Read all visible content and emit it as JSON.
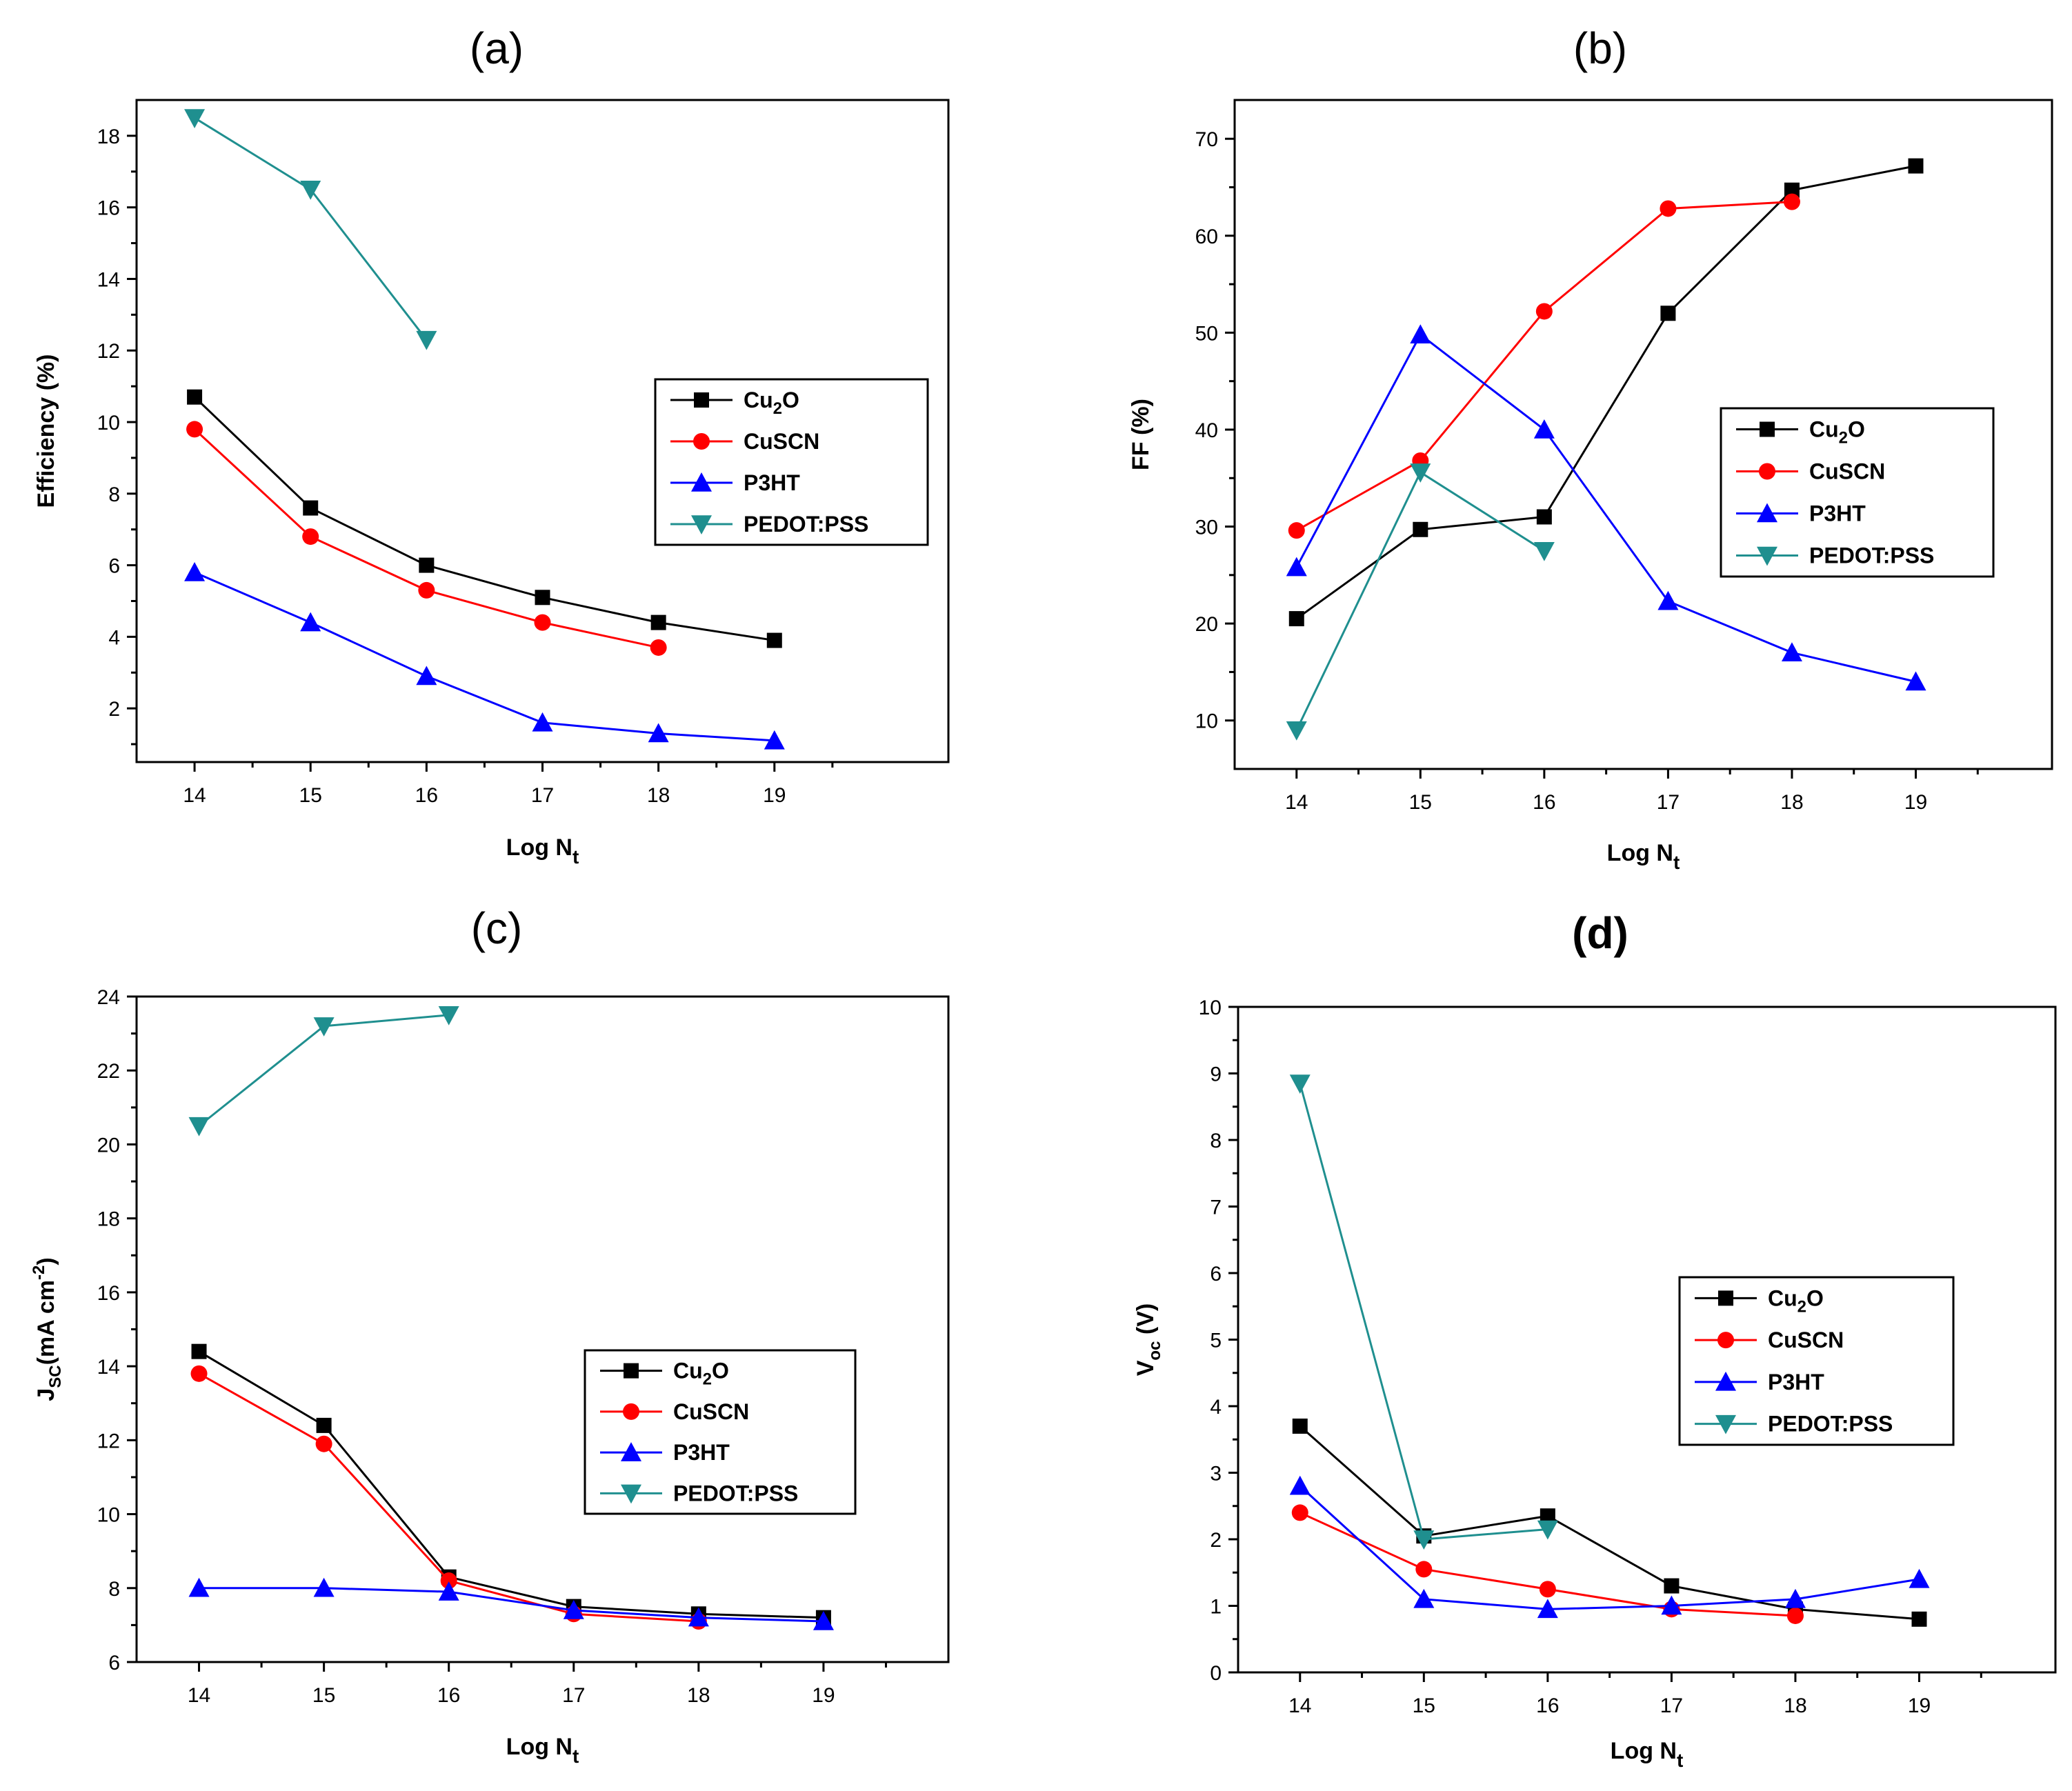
{
  "figure": {
    "panel_count": 4
  },
  "colors": {
    "Cu2O": "#000000",
    "CuSCN": "#ff0000",
    "P3HT": "#0000ff",
    "PEDOT:PSS": "#1f8f8f"
  },
  "chart_data": [
    {
      "id": "a",
      "type": "line",
      "title": "(a)",
      "title_bold": false,
      "xlabel_main": "Log N",
      "xlabel_sub": "t",
      "ylabel_main": "Efficiency (%)",
      "xlim": [
        13.5,
        20.5
      ],
      "ylim": [
        0.5,
        19
      ],
      "xticks": [
        14,
        15,
        16,
        17,
        18,
        19
      ],
      "yticks": [
        2,
        4,
        6,
        8,
        10,
        12,
        14,
        16,
        18
      ],
      "legend_position": "center-right",
      "series": [
        {
          "name": "Cu2O",
          "label": {
            "pre": "Cu",
            "sub": "2",
            "post": "O"
          },
          "marker": "square",
          "color": "#000000",
          "x": [
            14,
            15,
            16,
            17,
            18,
            19
          ],
          "y": [
            10.7,
            7.6,
            6.0,
            5.1,
            4.4,
            3.9
          ]
        },
        {
          "name": "CuSCN",
          "label": {
            "pre": "CuSCN",
            "sub": "",
            "post": ""
          },
          "marker": "circle",
          "color": "#ff0000",
          "x": [
            14,
            15,
            16,
            17,
            18
          ],
          "y": [
            9.8,
            6.8,
            5.3,
            4.4,
            3.7
          ]
        },
        {
          "name": "P3HT",
          "label": {
            "pre": "P3HT",
            "sub": "",
            "post": ""
          },
          "marker": "triangle-up",
          "color": "#0000ff",
          "x": [
            14,
            15,
            16,
            17,
            18,
            19
          ],
          "y": [
            5.8,
            4.4,
            2.9,
            1.6,
            1.3,
            1.1
          ]
        },
        {
          "name": "PEDOT:PSS",
          "label": {
            "pre": "PEDOT:PSS",
            "sub": "",
            "post": ""
          },
          "marker": "triangle-down",
          "color": "#1f8f8f",
          "x": [
            14,
            15,
            16
          ],
          "y": [
            18.5,
            16.5,
            12.3
          ]
        }
      ]
    },
    {
      "id": "b",
      "type": "line",
      "title": "(b)",
      "title_bold": false,
      "xlabel_main": "Log N",
      "xlabel_sub": "t",
      "ylabel_main": "FF (%)",
      "xlim": [
        13.5,
        20.1
      ],
      "ylim": [
        5,
        74
      ],
      "xticks": [
        14,
        15,
        16,
        17,
        18,
        19
      ],
      "yticks": [
        10,
        20,
        30,
        40,
        50,
        60,
        70
      ],
      "legend_position": "center-right",
      "series": [
        {
          "name": "Cu2O",
          "label": {
            "pre": "Cu",
            "sub": "2",
            "post": "O"
          },
          "marker": "square",
          "color": "#000000",
          "x": [
            14,
            15,
            16,
            17,
            18,
            19
          ],
          "y": [
            20.5,
            29.7,
            31.0,
            52.0,
            64.7,
            67.2
          ]
        },
        {
          "name": "CuSCN",
          "label": {
            "pre": "CuSCN",
            "sub": "",
            "post": ""
          },
          "marker": "circle",
          "color": "#ff0000",
          "x": [
            14,
            15,
            16,
            17,
            18
          ],
          "y": [
            29.6,
            36.8,
            52.2,
            62.8,
            63.5
          ]
        },
        {
          "name": "P3HT",
          "label": {
            "pre": "P3HT",
            "sub": "",
            "post": ""
          },
          "marker": "triangle-up",
          "color": "#0000ff",
          "x": [
            14,
            15,
            16,
            17,
            18,
            19
          ],
          "y": [
            25.8,
            49.8,
            40.0,
            22.3,
            17.0,
            14.0
          ]
        },
        {
          "name": "PEDOT:PSS",
          "label": {
            "pre": "PEDOT:PSS",
            "sub": "",
            "post": ""
          },
          "marker": "triangle-down",
          "color": "#1f8f8f",
          "x": [
            14,
            15,
            16
          ],
          "y": [
            9.0,
            35.6,
            27.5
          ]
        }
      ]
    },
    {
      "id": "c",
      "type": "line",
      "title": "(c)",
      "title_bold": false,
      "xlabel_main": "Log N",
      "xlabel_sub": "t",
      "ylabel_main": "J",
      "ylabel_sub": "SC",
      "ylabel_unit_pre": "(mA cm",
      "ylabel_unit_sup": "-2",
      "ylabel_unit_post": ")",
      "xlim": [
        13.5,
        20.0
      ],
      "ylim": [
        6,
        24
      ],
      "xticks": [
        14,
        15,
        16,
        17,
        18,
        19
      ],
      "yticks": [
        6,
        8,
        10,
        12,
        14,
        16,
        18,
        20,
        22,
        24
      ],
      "legend_position": "center-right",
      "series": [
        {
          "name": "Cu2O",
          "label": {
            "pre": "Cu",
            "sub": "2",
            "post": "O"
          },
          "marker": "square",
          "color": "#000000",
          "x": [
            14,
            15,
            16,
            17,
            18,
            19
          ],
          "y": [
            14.4,
            12.4,
            8.3,
            7.5,
            7.3,
            7.2
          ]
        },
        {
          "name": "CuSCN",
          "label": {
            "pre": "CuSCN",
            "sub": "",
            "post": ""
          },
          "marker": "circle",
          "color": "#ff0000",
          "x": [
            14,
            15,
            16,
            17,
            18
          ],
          "y": [
            13.8,
            11.9,
            8.2,
            7.3,
            7.1
          ]
        },
        {
          "name": "P3HT",
          "label": {
            "pre": "P3HT",
            "sub": "",
            "post": ""
          },
          "marker": "triangle-up",
          "color": "#0000ff",
          "x": [
            14,
            15,
            16,
            17,
            18,
            19
          ],
          "y": [
            8.0,
            8.0,
            7.9,
            7.4,
            7.2,
            7.1
          ]
        },
        {
          "name": "PEDOT:PSS",
          "label": {
            "pre": "PEDOT:PSS",
            "sub": "",
            "post": ""
          },
          "marker": "triangle-down",
          "color": "#1f8f8f",
          "x": [
            14,
            15,
            16
          ],
          "y": [
            20.5,
            23.2,
            23.5
          ]
        }
      ]
    },
    {
      "id": "d",
      "type": "line",
      "title": "(d)",
      "title_bold": true,
      "xlabel_main": "Log N",
      "xlabel_sub": "t",
      "ylabel_main": "V",
      "ylabel_sub": "oc",
      "ylabel_unit_pre": "(V)",
      "xlim": [
        13.5,
        20.1
      ],
      "ylim": [
        0,
        10
      ],
      "xticks": [
        14,
        15,
        16,
        17,
        18,
        19
      ],
      "yticks": [
        0,
        1,
        2,
        3,
        4,
        5,
        6,
        7,
        8,
        9,
        10
      ],
      "legend_position": "center-right",
      "series": [
        {
          "name": "Cu2O",
          "label": {
            "pre": "Cu",
            "sub": "2",
            "post": "O"
          },
          "marker": "square",
          "color": "#000000",
          "x": [
            14,
            15,
            16,
            17,
            18,
            19
          ],
          "y": [
            3.7,
            2.05,
            2.35,
            1.3,
            0.95,
            0.8
          ]
        },
        {
          "name": "CuSCN",
          "label": {
            "pre": "CuSCN",
            "sub": "",
            "post": ""
          },
          "marker": "circle",
          "color": "#ff0000",
          "x": [
            14,
            15,
            16,
            17,
            18
          ],
          "y": [
            2.4,
            1.55,
            1.25,
            0.95,
            0.85
          ]
        },
        {
          "name": "P3HT",
          "label": {
            "pre": "P3HT",
            "sub": "",
            "post": ""
          },
          "marker": "triangle-up",
          "color": "#0000ff",
          "x": [
            14,
            15,
            16,
            17,
            18,
            19
          ],
          "y": [
            2.8,
            1.1,
            0.95,
            1.0,
            1.1,
            1.4
          ]
        },
        {
          "name": "PEDOT:PSS",
          "label": {
            "pre": "PEDOT:PSS",
            "sub": "",
            "post": ""
          },
          "marker": "triangle-down",
          "color": "#1f8f8f",
          "x": [
            14,
            15,
            16
          ],
          "y": [
            8.85,
            2.0,
            2.15
          ]
        }
      ]
    }
  ]
}
